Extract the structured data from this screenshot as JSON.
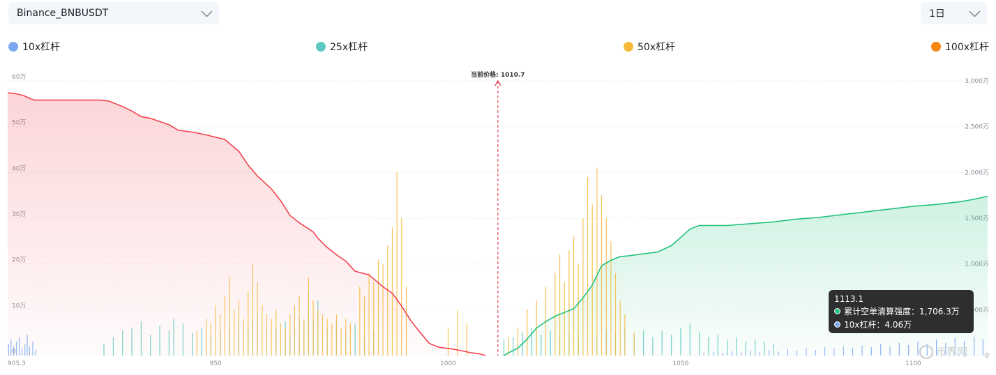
{
  "controls": {
    "pair": "Binance_BNBUSDT",
    "interval": "1日"
  },
  "legend": [
    {
      "label": "10x杠杆",
      "color": "#7aa7f0"
    },
    {
      "label": "25x杠杆",
      "color": "#5ec8c0"
    },
    {
      "label": "50x杠杆",
      "color": "#f7b93a"
    },
    {
      "label": "100x杠杆",
      "color": "#f5880f"
    }
  ],
  "tooltip": {
    "title": "1113.1",
    "rows": [
      {
        "label": "累计空单清算强度：1,706.3万",
        "color": "#23c27d"
      },
      {
        "label": "10x杠杆：4.06万",
        "color": "#7aa7f0"
      }
    ]
  },
  "watermark": "币界网",
  "chart_data": {
    "type": "bar",
    "current_price_label": "当前价格: 1010.7",
    "current_price": 1010.7,
    "xlim": [
      905.3,
      1116
    ],
    "x_ticks": [
      {
        "value": 905.3,
        "label": "905.3"
      },
      {
        "value": 950,
        "label": "950"
      },
      {
        "value": 1000,
        "label": "1000"
      },
      {
        "value": 1050,
        "label": "1050"
      },
      {
        "value": 1100,
        "label": "1100"
      }
    ],
    "ylim_left": [
      0,
      600000
    ],
    "y_ticks_left": [
      "0",
      "10万",
      "20万",
      "30万",
      "40万",
      "50万",
      "60万"
    ],
    "ylim_right": [
      0,
      30000000
    ],
    "y_ticks_right": [
      "0",
      "500万",
      "1,000万",
      "1,500万",
      "2,000万",
      "2,500万",
      "3,000万"
    ],
    "grid": true,
    "series": [
      {
        "name": "10x杠杆",
        "color": "#7aa7f0",
        "axis": "left",
        "points": [
          [
            905.5,
            25000
          ],
          [
            906,
            35000
          ],
          [
            906.6,
            20000
          ],
          [
            907.2,
            30000
          ],
          [
            907.8,
            40000
          ],
          [
            908.4,
            15000
          ],
          [
            909,
            25000
          ],
          [
            909.5,
            45000
          ],
          [
            910,
            20000
          ],
          [
            910.7,
            30000
          ],
          [
            911.3,
            12000
          ],
          [
            1055,
            6000
          ],
          [
            1057,
            8000
          ],
          [
            1059,
            5000
          ],
          [
            1061,
            9000
          ],
          [
            1063,
            7000
          ],
          [
            1065,
            10000
          ],
          [
            1067,
            8000
          ],
          [
            1069,
            12000
          ],
          [
            1071,
            9000
          ],
          [
            1073,
            14000
          ],
          [
            1075,
            10000
          ],
          [
            1077,
            16000
          ],
          [
            1079,
            12000
          ],
          [
            1081,
            18000
          ],
          [
            1083,
            15000
          ],
          [
            1085,
            20000
          ],
          [
            1087,
            17000
          ],
          [
            1089,
            22000
          ],
          [
            1091,
            18000
          ],
          [
            1093,
            25000
          ],
          [
            1095,
            20000
          ],
          [
            1097,
            28000
          ],
          [
            1099,
            23000
          ],
          [
            1101,
            30000
          ],
          [
            1103,
            26000
          ],
          [
            1105,
            35000
          ],
          [
            1107,
            28000
          ],
          [
            1109,
            38000
          ],
          [
            1111,
            32000
          ],
          [
            1113.1,
            40600
          ],
          [
            1115,
            36000
          ]
        ]
      },
      {
        "name": "25x杠杆",
        "color": "#5ec8c0",
        "axis": "left",
        "points": [
          [
            926,
            25000
          ],
          [
            928,
            40000
          ],
          [
            930,
            55000
          ],
          [
            932,
            60000
          ],
          [
            934,
            75000
          ],
          [
            936,
            45000
          ],
          [
            938,
            65000
          ],
          [
            940,
            55000
          ],
          [
            941,
            80000
          ],
          [
            943,
            70000
          ],
          [
            945,
            50000
          ],
          [
            947,
            60000
          ],
          [
            949,
            40000
          ],
          [
            951,
            55000
          ],
          [
            953,
            65000
          ],
          [
            955,
            70000
          ],
          [
            957,
            60000
          ],
          [
            958,
            75000
          ],
          [
            959,
            90000
          ],
          [
            961,
            55000
          ],
          [
            963,
            60000
          ],
          [
            965,
            75000
          ],
          [
            966,
            45000
          ],
          [
            967,
            65000
          ],
          [
            968,
            85000
          ],
          [
            969,
            70000
          ],
          [
            970,
            140000
          ],
          [
            971,
            80000
          ],
          [
            972,
            120000
          ],
          [
            974,
            60000
          ],
          [
            976,
            75000
          ],
          [
            978,
            55000
          ],
          [
            980,
            70000
          ],
          [
            982,
            45000
          ],
          [
            984,
            55000
          ],
          [
            1012,
            35000
          ],
          [
            1014,
            40000
          ],
          [
            1016,
            50000
          ],
          [
            1018,
            60000
          ],
          [
            1020,
            45000
          ],
          [
            1022,
            55000
          ],
          [
            1024,
            40000
          ],
          [
            1026,
            50000
          ],
          [
            1028,
            45000
          ],
          [
            1032,
            40000
          ],
          [
            1034,
            55000
          ],
          [
            1036,
            50000
          ],
          [
            1038,
            60000
          ],
          [
            1040,
            45000
          ],
          [
            1042,
            55000
          ],
          [
            1044,
            40000
          ],
          [
            1046,
            55000
          ],
          [
            1048,
            45000
          ],
          [
            1050,
            60000
          ],
          [
            1052,
            70000
          ],
          [
            1054,
            50000
          ],
          [
            1056,
            40000
          ],
          [
            1058,
            45000
          ],
          [
            1060,
            35000
          ],
          [
            1062,
            40000
          ],
          [
            1064,
            30000
          ],
          [
            1066,
            35000
          ],
          [
            1068,
            30000
          ],
          [
            1070,
            25000
          ]
        ]
      },
      {
        "name": "50x杠杆",
        "color": "#f7b93a",
        "axis": "left",
        "points": [
          [
            946,
            55000
          ],
          [
            948,
            80000
          ],
          [
            949,
            70000
          ],
          [
            950,
            110000
          ],
          [
            951,
            90000
          ],
          [
            952,
            130000
          ],
          [
            953,
            170000
          ],
          [
            954,
            100000
          ],
          [
            955,
            120000
          ],
          [
            956,
            80000
          ],
          [
            957,
            140000
          ],
          [
            958,
            200000
          ],
          [
            959,
            160000
          ],
          [
            960,
            110000
          ],
          [
            961,
            90000
          ],
          [
            962,
            80000
          ],
          [
            963,
            100000
          ],
          [
            964,
            70000
          ],
          [
            965,
            60000
          ],
          [
            966,
            90000
          ],
          [
            967,
            110000
          ],
          [
            968,
            130000
          ],
          [
            969,
            80000
          ],
          [
            970,
            170000
          ],
          [
            971,
            120000
          ],
          [
            972,
            100000
          ],
          [
            973,
            90000
          ],
          [
            974,
            80000
          ],
          [
            975,
            70000
          ],
          [
            976,
            90000
          ],
          [
            977,
            60000
          ],
          [
            978,
            80000
          ],
          [
            979,
            70000
          ],
          [
            981,
            150000
          ],
          [
            982,
            130000
          ],
          [
            983,
            180000
          ],
          [
            984,
            160000
          ],
          [
            985,
            210000
          ],
          [
            986,
            200000
          ],
          [
            987,
            240000
          ],
          [
            988,
            280000
          ],
          [
            989,
            400000
          ],
          [
            990,
            300000
          ],
          [
            991,
            150000
          ],
          [
            1000,
            60000
          ],
          [
            1002,
            100000
          ],
          [
            1004,
            70000
          ],
          [
            1013,
            40000
          ],
          [
            1015,
            60000
          ],
          [
            1017,
            100000
          ],
          [
            1019,
            120000
          ],
          [
            1021,
            150000
          ],
          [
            1023,
            180000
          ],
          [
            1024,
            220000
          ],
          [
            1025,
            160000
          ],
          [
            1026,
            230000
          ],
          [
            1027,
            260000
          ],
          [
            1028,
            200000
          ],
          [
            1029,
            300000
          ],
          [
            1030,
            390000
          ],
          [
            1031,
            330000
          ],
          [
            1032,
            410000
          ],
          [
            1033,
            350000
          ],
          [
            1034,
            300000
          ],
          [
            1035,
            250000
          ],
          [
            1036,
            180000
          ],
          [
            1037,
            120000
          ],
          [
            1038,
            90000
          ],
          [
            1040,
            50000
          ]
        ]
      },
      {
        "name": "100x杠杆",
        "color": "#f5880f",
        "axis": "left",
        "points": []
      },
      {
        "name": "累计多单清算强度",
        "color": "#f0434f",
        "axis": "right",
        "type": "area",
        "side": "long",
        "points": [
          [
            905.3,
            28700000
          ],
          [
            907,
            28600000
          ],
          [
            908.7,
            28400000
          ],
          [
            910,
            28100000
          ],
          [
            911,
            27900000
          ],
          [
            915,
            27900000
          ],
          [
            920,
            27900000
          ],
          [
            925,
            27900000
          ],
          [
            927,
            27800000
          ],
          [
            930,
            27200000
          ],
          [
            932,
            26700000
          ],
          [
            934,
            26100000
          ],
          [
            936,
            25900000
          ],
          [
            940,
            25200000
          ],
          [
            942,
            24600000
          ],
          [
            945,
            24400000
          ],
          [
            948,
            24100000
          ],
          [
            952,
            23600000
          ],
          [
            955,
            22300000
          ],
          [
            957,
            20800000
          ],
          [
            959,
            19600000
          ],
          [
            962,
            18200000
          ],
          [
            964,
            16900000
          ],
          [
            966,
            15300000
          ],
          [
            968,
            14500000
          ],
          [
            971,
            13500000
          ],
          [
            972,
            12800000
          ],
          [
            974,
            11800000
          ],
          [
            976,
            11000000
          ],
          [
            978,
            10300000
          ],
          [
            980,
            9200000
          ],
          [
            983,
            8800000
          ],
          [
            986,
            7500000
          ],
          [
            988,
            6800000
          ],
          [
            990,
            5400000
          ],
          [
            992,
            3800000
          ],
          [
            994,
            2500000
          ],
          [
            996,
            1300000
          ],
          [
            998,
            900000
          ],
          [
            1001,
            700000
          ],
          [
            1003,
            500000
          ],
          [
            1005,
            300000
          ],
          [
            1007,
            150000
          ],
          [
            1008,
            0
          ]
        ]
      },
      {
        "name": "累计空单清算强度",
        "color": "#23c27d",
        "axis": "right",
        "type": "area",
        "side": "short",
        "points": [
          [
            1012,
            0
          ],
          [
            1013,
            300000
          ],
          [
            1015,
            800000
          ],
          [
            1017,
            1800000
          ],
          [
            1019,
            3000000
          ],
          [
            1021,
            3700000
          ],
          [
            1023,
            4300000
          ],
          [
            1025,
            4700000
          ],
          [
            1027,
            5100000
          ],
          [
            1029,
            6300000
          ],
          [
            1031,
            7700000
          ],
          [
            1033,
            9800000
          ],
          [
            1035,
            10400000
          ],
          [
            1037,
            10800000
          ],
          [
            1039,
            10900000
          ],
          [
            1042,
            11100000
          ],
          [
            1045,
            11300000
          ],
          [
            1048,
            12000000
          ],
          [
            1050,
            12900000
          ],
          [
            1052,
            13800000
          ],
          [
            1054,
            14200000
          ],
          [
            1056,
            14200000
          ],
          [
            1060,
            14200000
          ],
          [
            1065,
            14400000
          ],
          [
            1070,
            14600000
          ],
          [
            1075,
            14900000
          ],
          [
            1080,
            15100000
          ],
          [
            1085,
            15400000
          ],
          [
            1090,
            15700000
          ],
          [
            1095,
            16000000
          ],
          [
            1100,
            16300000
          ],
          [
            1105,
            16500000
          ],
          [
            1110,
            16800000
          ],
          [
            1113.1,
            17063000
          ],
          [
            1116,
            17400000
          ]
        ]
      }
    ]
  }
}
